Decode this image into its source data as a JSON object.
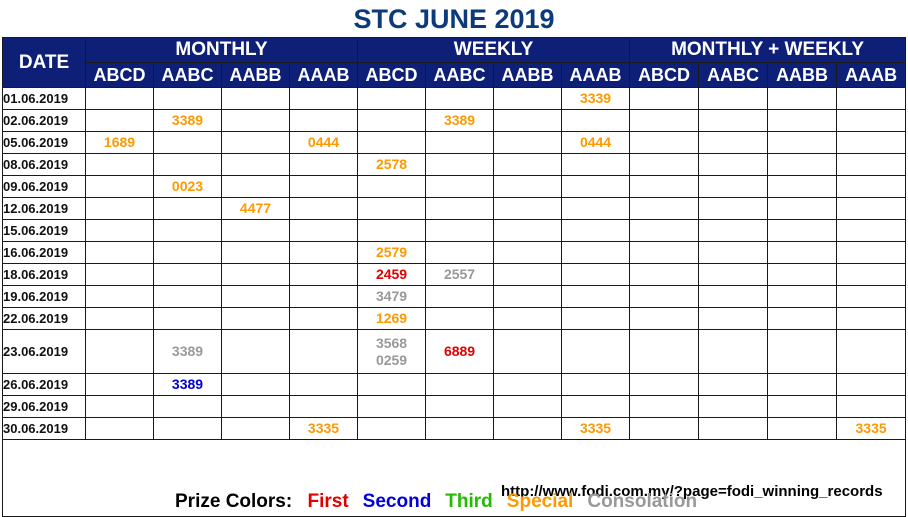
{
  "title": "STC JUNE 2019",
  "header": {
    "date_label": "DATE",
    "groups": [
      "MONTHLY",
      "WEEKLY",
      "MONTHLY + WEEKLY"
    ],
    "columns": [
      "ABCD",
      "AABC",
      "AABB",
      "AAAB",
      "ABCD",
      "AABC",
      "AABB",
      "AAAB",
      "ABCD",
      "AABC",
      "AABB",
      "AAAB"
    ]
  },
  "rows": [
    {
      "date": "01.06.2019",
      "cells": [
        [],
        [],
        [],
        [],
        [],
        [],
        [],
        [
          {
            "v": "3339",
            "c": "special"
          }
        ],
        [],
        [],
        [],
        []
      ]
    },
    {
      "date": "02.06.2019",
      "cells": [
        [],
        [
          {
            "v": "3389",
            "c": "special"
          }
        ],
        [],
        [],
        [],
        [
          {
            "v": "3389",
            "c": "special"
          }
        ],
        [],
        [],
        [],
        [],
        [],
        []
      ]
    },
    {
      "date": "05.06.2019",
      "cells": [
        [
          {
            "v": "1689",
            "c": "special"
          }
        ],
        [],
        [],
        [
          {
            "v": "0444",
            "c": "special"
          }
        ],
        [],
        [],
        [],
        [
          {
            "v": "0444",
            "c": "special"
          }
        ],
        [],
        [],
        [],
        []
      ]
    },
    {
      "date": "08.06.2019",
      "cells": [
        [],
        [],
        [],
        [],
        [
          {
            "v": "2578",
            "c": "special"
          }
        ],
        [],
        [],
        [],
        [],
        [],
        [],
        []
      ]
    },
    {
      "date": "09.06.2019",
      "cells": [
        [],
        [
          {
            "v": "0023",
            "c": "special"
          }
        ],
        [],
        [],
        [],
        [],
        [],
        [],
        [],
        [],
        [],
        []
      ]
    },
    {
      "date": "12.06.2019",
      "cells": [
        [],
        [],
        [
          {
            "v": "4477",
            "c": "special"
          }
        ],
        [],
        [],
        [],
        [],
        [],
        [],
        [],
        [],
        []
      ]
    },
    {
      "date": "15.06.2019",
      "cells": [
        [],
        [],
        [],
        [],
        [],
        [],
        [],
        [],
        [],
        [],
        [],
        []
      ]
    },
    {
      "date": "16.06.2019",
      "cells": [
        [],
        [],
        [],
        [],
        [
          {
            "v": "2579",
            "c": "special"
          }
        ],
        [],
        [],
        [],
        [],
        [],
        [],
        []
      ]
    },
    {
      "date": "18.06.2019",
      "cells": [
        [],
        [],
        [],
        [],
        [
          {
            "v": "2459",
            "c": "first"
          }
        ],
        [
          {
            "v": "2557",
            "c": "consolation"
          }
        ],
        [],
        [],
        [],
        [],
        [],
        []
      ]
    },
    {
      "date": "19.06.2019",
      "cells": [
        [],
        [],
        [],
        [],
        [
          {
            "v": "3479",
            "c": "consolation"
          }
        ],
        [],
        [],
        [],
        [],
        [],
        [],
        []
      ]
    },
    {
      "date": "22.06.2019",
      "cells": [
        [],
        [],
        [],
        [],
        [
          {
            "v": "1269",
            "c": "special"
          }
        ],
        [],
        [],
        [],
        [],
        [],
        [],
        []
      ]
    },
    {
      "date": "23.06.2019",
      "tall": true,
      "cells": [
        [],
        [
          {
            "v": "3389",
            "c": "consolation"
          }
        ],
        [],
        [],
        [
          {
            "v": "3568",
            "c": "consolation"
          },
          {
            "v": "0259",
            "c": "consolation"
          }
        ],
        [
          {
            "v": "6889",
            "c": "first"
          }
        ],
        [],
        [],
        [],
        [],
        [],
        []
      ]
    },
    {
      "date": "26.06.2019",
      "cells": [
        [],
        [
          {
            "v": "3389",
            "c": "second"
          }
        ],
        [],
        [],
        [],
        [],
        [],
        [],
        [],
        [],
        [],
        []
      ]
    },
    {
      "date": "29.06.2019",
      "cells": [
        [],
        [],
        [],
        [],
        [],
        [],
        [],
        [],
        [],
        [],
        [],
        []
      ]
    },
    {
      "date": "30.06.2019",
      "cells": [
        [],
        [],
        [],
        [
          {
            "v": "3335",
            "c": "special"
          }
        ],
        [],
        [],
        [],
        [
          {
            "v": "3335",
            "c": "special"
          }
        ],
        [],
        [],
        [],
        [
          {
            "v": "3335",
            "c": "special"
          }
        ]
      ]
    }
  ],
  "footer": {
    "legend_label": "Prize Colors:",
    "legend": [
      {
        "label": "First",
        "c": "first"
      },
      {
        "label": "Second",
        "c": "second"
      },
      {
        "label": "Third",
        "c": "third"
      },
      {
        "label": "Special",
        "c": "special"
      },
      {
        "label": "Consolation",
        "c": "consolation"
      }
    ],
    "url": "http://www.fodi.com.my/?page=fodi_winning_records"
  },
  "colors": {
    "header_bg": "#0e1f78",
    "title": "#0d3a7a",
    "first": "#e00000",
    "second": "#0000dd",
    "third": "#22bb00",
    "special": "#ff9900",
    "consolation": "#999999"
  }
}
